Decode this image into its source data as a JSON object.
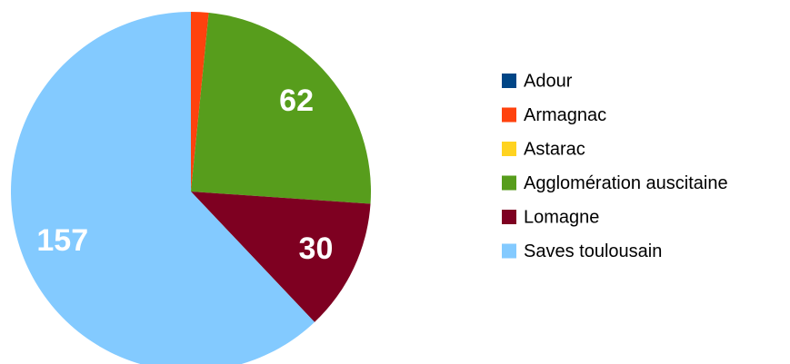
{
  "chart_data": {
    "type": "pie",
    "categories": [
      "Adour",
      "Armagnac",
      "Astarac",
      "Agglomération auscitaine",
      "Lomagne",
      "Saves toulousain"
    ],
    "values": [
      0,
      4,
      0,
      62,
      30,
      157
    ],
    "colors": [
      "#004586",
      "#ff420e",
      "#ffd320",
      "#579d1c",
      "#7e0021",
      "#83caff"
    ],
    "labeled": [
      false,
      false,
      false,
      true,
      true,
      true
    ],
    "legend": "right"
  }
}
